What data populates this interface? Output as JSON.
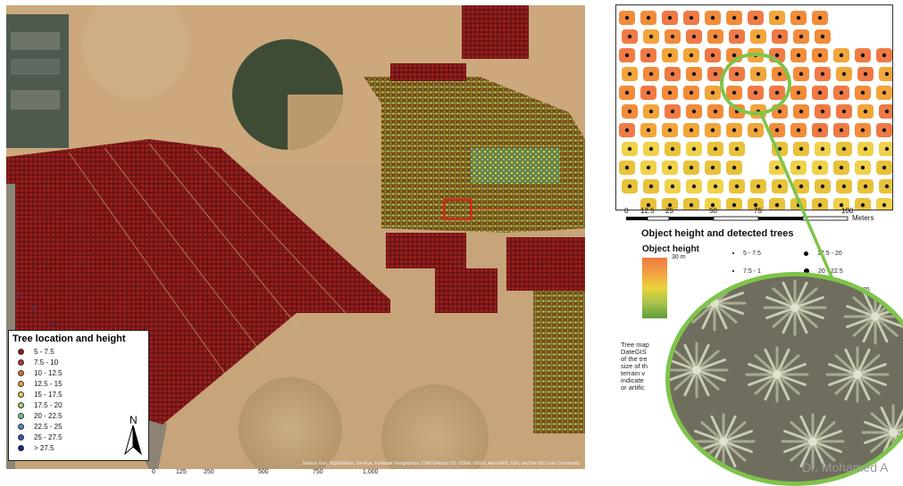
{
  "main_map": {
    "attribution": "Source: Esri, DigitalGlobe, GeoEye, Earthstar Geographics, CNES/Airbus DS, USDA, USGS, AeroGRID, IGN, and the GIS User Community",
    "scale_labels": [
      "0",
      "125",
      "250",
      "500",
      "750",
      "1,000"
    ]
  },
  "legend": {
    "title": "Tree location and height",
    "north_label": "N",
    "items": [
      {
        "label": "5 - 7.5",
        "color": "#8b1a1a"
      },
      {
        "label": "7.5 - 10",
        "color": "#b5312a"
      },
      {
        "label": "10 - 12.5",
        "color": "#d4722f"
      },
      {
        "label": "12.5 - 15",
        "color": "#e0a43a"
      },
      {
        "label": "15 - 17.5",
        "color": "#d9d24a"
      },
      {
        "label": "17.5 - 20",
        "color": "#a8cf6a"
      },
      {
        "label": "20 - 22.5",
        "color": "#6bbf9a"
      },
      {
        "label": "22.5 - 25",
        "color": "#4a8ec9"
      },
      {
        "label": "25 - 27.5",
        "color": "#3454b0"
      },
      {
        "label": "> 27.5",
        "color": "#1a237e"
      }
    ]
  },
  "inset": {
    "scale_ticks": [
      "0",
      "12.5",
      "25",
      "50",
      "75",
      "100"
    ],
    "scale_unit": "Meters",
    "title": "Object height and detected trees",
    "object_height_label": "Object height",
    "object_height_max": "30 m",
    "height_classes": [
      {
        "label": "5 - 7.5",
        "size": "small"
      },
      {
        "label": "17.5 - 20",
        "size": "large"
      },
      {
        "label": "7.5 - 1",
        "size": "small"
      },
      {
        "label": "20 - 22.5",
        "size": "large"
      },
      {
        "label": "25",
        "size": "large"
      }
    ]
  },
  "caption_lines": [
    "Tree map",
    "DateGIS",
    "of the tre",
    "size of th",
    "terrain v",
    "indicate",
    " or artific"
  ],
  "author": "Dr. Mohamed A",
  "colors": {
    "highlight_green": "#7ec44a",
    "selection_red": "#e02020"
  }
}
